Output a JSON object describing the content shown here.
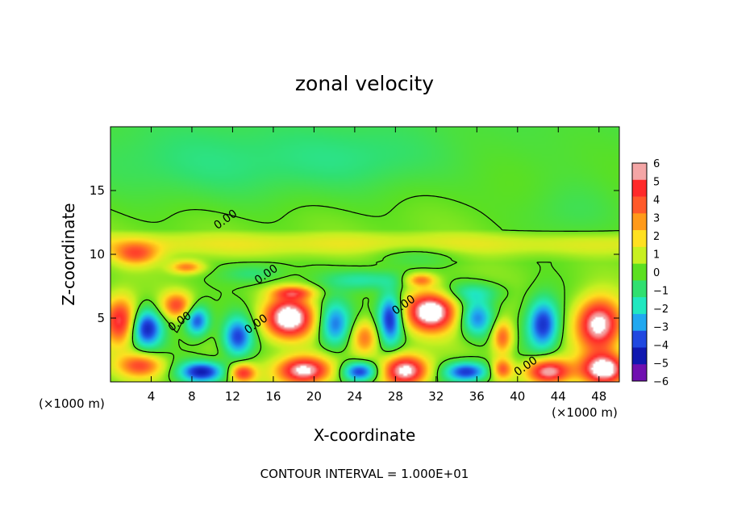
{
  "chart_data": {
    "type": "heatmap",
    "title": "zonal velocity",
    "xlabel": "X-coordinate",
    "ylabel": "Z-coordinate",
    "x_unit_label": "(×1000 m)",
    "x_unit_label_right": "(×1000 m)",
    "xlim": [
      0,
      50
    ],
    "ylim": [
      0,
      20
    ],
    "x_ticks": [
      4,
      8,
      12,
      16,
      20,
      24,
      28,
      32,
      36,
      40,
      44,
      48
    ],
    "y_ticks": [
      5,
      10,
      15
    ],
    "x_tick_labels": [
      "4",
      "8",
      "12",
      "16",
      "20",
      "24",
      "28",
      "32",
      "36",
      "40",
      "44",
      "48"
    ],
    "y_tick_labels": [
      "5",
      "10",
      "15"
    ],
    "colorbar": {
      "levels": [
        6,
        5,
        4,
        3,
        2,
        1,
        0,
        -1,
        -2,
        -3,
        -4,
        -5,
        -6
      ],
      "labels": [
        "6",
        "5",
        "4",
        "3",
        "2",
        "1",
        "0",
        "−1",
        "−2",
        "−3",
        "−4",
        "−5",
        "−6"
      ],
      "colors": [
        "#f4a6a6",
        "#ff2a2a",
        "#ff5a2a",
        "#ff9a1a",
        "#ffe020",
        "#c8f020",
        "#5ce020",
        "#30e070",
        "#20e8c0",
        "#20a8f0",
        "#2048e0",
        "#1018b0",
        "#7010b0"
      ]
    },
    "contour_labels": [
      {
        "text": "0.00",
        "x": 11.5,
        "z": 12.5
      },
      {
        "text": "0.00",
        "x": 15.5,
        "z": 8.2
      },
      {
        "text": "0.00",
        "x": 7.0,
        "z": 4.5
      },
      {
        "text": "0.00",
        "x": 14.5,
        "z": 4.3
      },
      {
        "text": "0.00",
        "x": 29.0,
        "z": 5.8
      },
      {
        "text": "0.00",
        "x": 41.0,
        "z": 1.0
      }
    ],
    "footer": "CONTOUR INTERVAL = 1.000E+01",
    "field_features": [
      {
        "x": 1.0,
        "z": 4.8,
        "v": 5.5,
        "sx": 1.6,
        "sz": 1.8
      },
      {
        "x": 3.5,
        "z": 4.2,
        "v": -5,
        "sx": 1.6,
        "sz": 1.5
      },
      {
        "x": 6.5,
        "z": 6.0,
        "v": 4,
        "sx": 1.5,
        "sz": 1.0
      },
      {
        "x": 8.5,
        "z": 4.8,
        "v": -4.5,
        "sx": 1.2,
        "sz": 1.2
      },
      {
        "x": 2.5,
        "z": 10.0,
        "v": 3.5,
        "sx": 2.2,
        "sz": 0.9
      },
      {
        "x": 7.5,
        "z": 9.0,
        "v": 3.5,
        "sx": 1.6,
        "sz": 0.5
      },
      {
        "x": 12.5,
        "z": 3.5,
        "v": -4.5,
        "sx": 1.5,
        "sz": 1.6
      },
      {
        "x": 17.5,
        "z": 5.0,
        "v": 7.5,
        "sx": 2.4,
        "sz": 1.6
      },
      {
        "x": 18.0,
        "z": 7.0,
        "v": 3.5,
        "sx": 2.0,
        "sz": 0.5
      },
      {
        "x": 22.0,
        "z": 4.5,
        "v": -4,
        "sx": 1.6,
        "sz": 1.8
      },
      {
        "x": 27.5,
        "z": 5.0,
        "v": -5,
        "sx": 1.2,
        "sz": 2.0
      },
      {
        "x": 25.0,
        "z": 3.5,
        "v": 3.5,
        "sx": 1.3,
        "sz": 1.3
      },
      {
        "x": 31.5,
        "z": 5.5,
        "v": 7.5,
        "sx": 2.4,
        "sz": 1.5
      },
      {
        "x": 30.5,
        "z": 8.0,
        "v": 3.5,
        "sx": 1.4,
        "sz": 0.5
      },
      {
        "x": 36.0,
        "z": 5.0,
        "v": -3.5,
        "sx": 1.6,
        "sz": 1.4
      },
      {
        "x": 38.5,
        "z": 3.5,
        "v": 4,
        "sx": 1.0,
        "sz": 1.3
      },
      {
        "x": 42.5,
        "z": 4.5,
        "v": -5,
        "sx": 1.6,
        "sz": 2.0
      },
      {
        "x": 48.0,
        "z": 4.5,
        "v": 7,
        "sx": 2.2,
        "sz": 2.0
      },
      {
        "x": 3.0,
        "z": 1.3,
        "v": 4,
        "sx": 2.2,
        "sz": 0.9
      },
      {
        "x": 9.0,
        "z": 0.8,
        "v": -5,
        "sx": 2.2,
        "sz": 0.8
      },
      {
        "x": 13.0,
        "z": 0.7,
        "v": 4.5,
        "sx": 1.2,
        "sz": 0.7
      },
      {
        "x": 19.0,
        "z": 0.9,
        "v": 7,
        "sx": 2.6,
        "sz": 1.1
      },
      {
        "x": 24.5,
        "z": 0.8,
        "v": -5,
        "sx": 1.8,
        "sz": 0.8
      },
      {
        "x": 29.0,
        "z": 0.9,
        "v": 7,
        "sx": 2.2,
        "sz": 1.2
      },
      {
        "x": 35.0,
        "z": 0.8,
        "v": -5,
        "sx": 2.2,
        "sz": 0.8
      },
      {
        "x": 38.5,
        "z": 1.0,
        "v": 4,
        "sx": 1.0,
        "sz": 0.8
      },
      {
        "x": 43.0,
        "z": 0.8,
        "v": 6.5,
        "sx": 2.2,
        "sz": 1.0
      },
      {
        "x": 48.5,
        "z": 1.0,
        "v": 7,
        "sx": 2.2,
        "sz": 1.2
      },
      {
        "x": 14.0,
        "z": 8.5,
        "v": -1.5,
        "sx": 3.0,
        "sz": 0.8
      },
      {
        "x": 25.0,
        "z": 8.0,
        "v": -2,
        "sx": 4.0,
        "sz": 0.8
      },
      {
        "x": 35.5,
        "z": 7.0,
        "v": -1.8,
        "sx": 3.0,
        "sz": 0.8
      },
      {
        "x": 30.0,
        "z": 10.0,
        "v": -1,
        "sx": 5.0,
        "sz": 0.8
      },
      {
        "x": 10.0,
        "z": 17.0,
        "v": -1,
        "sx": 12.0,
        "sz": 3.0
      },
      {
        "x": 25.0,
        "z": 17.5,
        "v": -0.8,
        "sx": 8.0,
        "sz": 2.5
      },
      {
        "x": 45.0,
        "z": 13.0,
        "v": -0.8,
        "sx": 5.0,
        "sz": 2.5
      }
    ]
  }
}
